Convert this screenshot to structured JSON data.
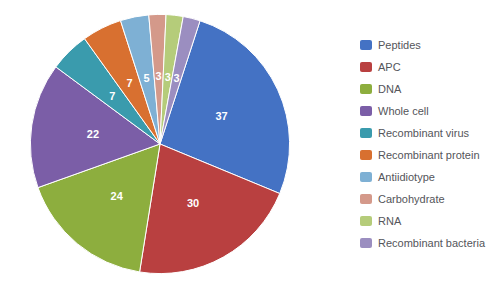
{
  "chart_data": {
    "type": "pie",
    "categories": [
      "Peptides",
      "APC",
      "DNA",
      "Whole cell",
      "Recombinant virus",
      "Recombinant protein",
      "Antiidiotype",
      "Carbohydrate",
      "RNA",
      "Recombinant bacteria"
    ],
    "values": [
      37,
      30,
      24,
      22,
      7,
      7,
      5,
      3,
      3,
      3
    ],
    "colors": [
      "#4472C4",
      "#B94040",
      "#8DAE3E",
      "#7B5EA7",
      "#3A9BAD",
      "#D87030",
      "#7EB0D4",
      "#D4998A",
      "#B5CC7A",
      "#9B8EC0"
    ],
    "data_labels": true,
    "legend": "right"
  }
}
